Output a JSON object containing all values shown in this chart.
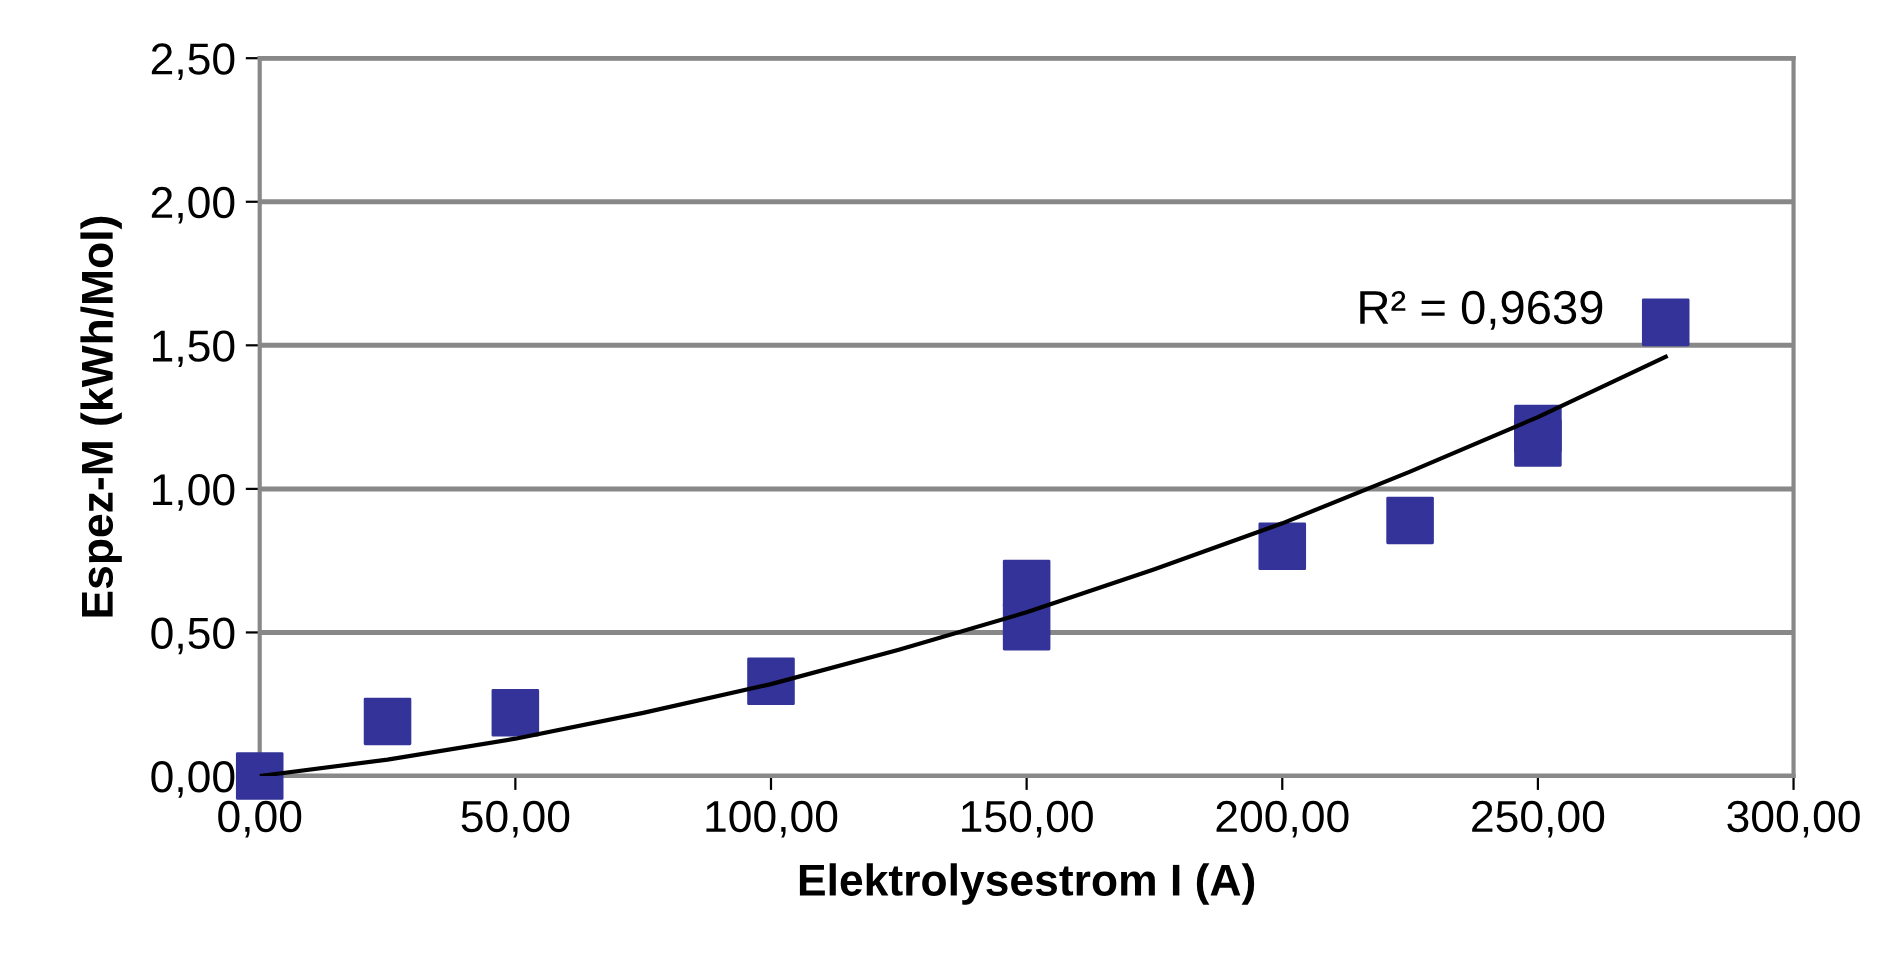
{
  "chart_data": {
    "type": "scatter",
    "xlabel": "Elektrolysestrom I (A)",
    "ylabel": "Espez-M (kWh/Mol)",
    "annotations": [
      "R² = 0,9639"
    ],
    "series": [
      {
        "color": "#333399",
        "marker": "square",
        "x": [
          0,
          25,
          50,
          100,
          150,
          150,
          200,
          225,
          250,
          250,
          275
        ],
        "values": [
          0,
          0.19,
          0.22,
          0.33,
          0.67,
          0.52,
          0.8,
          0.89,
          1.21,
          1.16,
          1.58
        ]
      },
      {
        "type": "line",
        "color": "#000000",
        "marker": "none",
        "x": [
          0,
          25,
          50,
          75,
          100,
          125,
          150,
          175,
          200,
          225,
          250,
          275
        ],
        "values": [
          0,
          0.057,
          0.13,
          0.22,
          0.32,
          0.44,
          0.57,
          0.72,
          0.88,
          1.06,
          1.25,
          1.46
        ]
      }
    ],
    "xlim": [
      0,
      300
    ],
    "ylim": [
      0,
      2.5
    ],
    "xticks": [
      {
        "value": 0,
        "label": "0,00"
      },
      {
        "value": 50,
        "label": "50,00"
      },
      {
        "value": 100,
        "label": "100,00"
      },
      {
        "value": 150,
        "label": "150,00"
      },
      {
        "value": 200,
        "label": "200,00"
      },
      {
        "value": 250,
        "label": "250,00"
      },
      {
        "value": 300,
        "label": "300,00"
      }
    ],
    "yticks": [
      {
        "value": 0,
        "label": "0,00"
      },
      {
        "value": 0.5,
        "label": "0,50"
      },
      {
        "value": 1,
        "label": "1,00"
      },
      {
        "value": 1.5,
        "label": "1,50"
      },
      {
        "value": 2,
        "label": "2,00"
      },
      {
        "value": 2.5,
        "label": "2,50"
      }
    ],
    "grid": "y"
  }
}
